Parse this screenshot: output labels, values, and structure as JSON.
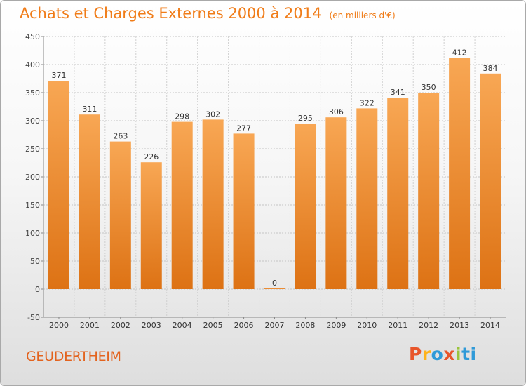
{
  "header": {
    "title": "Achats et Charges Externes 2000 à 2014",
    "unit": "(en milliers d'€)"
  },
  "footer": {
    "commune": "GEUDERTHEIM",
    "brand": "Proxiti"
  },
  "colors": {
    "title": "#f07c18",
    "bar_top": "#f8a754",
    "bar_bottom": "#dd7214",
    "commune": "#e3631e",
    "brand_letters": [
      "#e8552a",
      "#ffb31a",
      "#2f9ad8",
      "#e8552a",
      "#9ac43b",
      "#2f9ad8",
      "#2f9ad8"
    ]
  },
  "chart_data": {
    "type": "bar",
    "title": "Achats et Charges Externes 2000 à 2014",
    "subtitle": "(en milliers d'€)",
    "xlabel": "",
    "ylabel": "",
    "categories": [
      "2000",
      "2001",
      "2002",
      "2003",
      "2004",
      "2005",
      "2006",
      "2007",
      "2008",
      "2009",
      "2010",
      "2011",
      "2012",
      "2013",
      "2014"
    ],
    "values": [
      371,
      311,
      263,
      226,
      298,
      302,
      277,
      0,
      295,
      306,
      322,
      341,
      350,
      412,
      384
    ],
    "data_labels": [
      "371",
      "311",
      "263",
      "226",
      "298",
      "302",
      "277",
      "0",
      "295",
      "306",
      "322",
      "341",
      "350",
      "412",
      "384"
    ],
    "ylim": [
      -50,
      450
    ],
    "yticks": [
      -50,
      0,
      50,
      100,
      150,
      200,
      250,
      300,
      350,
      400,
      450
    ],
    "ytick_labels": [
      "-50",
      "0",
      "50",
      "100",
      "150",
      "200",
      "250",
      "300",
      "350",
      "400",
      "450"
    ],
    "grid": true,
    "legend": "none"
  }
}
